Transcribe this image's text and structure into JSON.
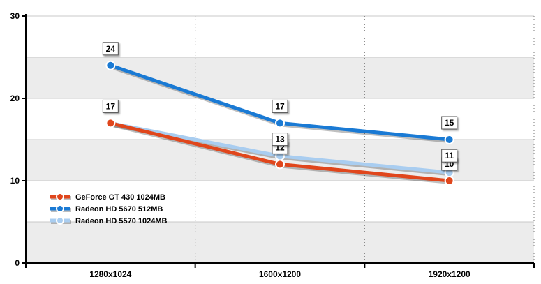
{
  "chart_data": {
    "type": "line",
    "categories": [
      "1280x1024",
      "1600x1200",
      "1920x1200"
    ],
    "ylim": [
      0,
      30
    ],
    "yticks": [
      0,
      10,
      20,
      30
    ],
    "grid": "horizontal bands with dotted vertical separators",
    "legend_position": "left",
    "series": [
      {
        "name": "GeForce GT 430 1024MB",
        "values": [
          17,
          12,
          10
        ],
        "color": "#e0461c",
        "labels": [
          "17",
          "12",
          "10"
        ]
      },
      {
        "name": "Radeon HD 5670 512MB",
        "values": [
          24,
          17,
          15
        ],
        "color": "#1a7ad4",
        "labels": [
          "24",
          "17",
          "15"
        ]
      },
      {
        "name": "Radeon HD 5570 1024MB",
        "values": [
          null,
          13,
          11
        ],
        "values_drawn": [
          17,
          13,
          11
        ],
        "color": "#a9cdf0",
        "labels": [
          "",
          "13",
          "11"
        ]
      }
    ]
  }
}
